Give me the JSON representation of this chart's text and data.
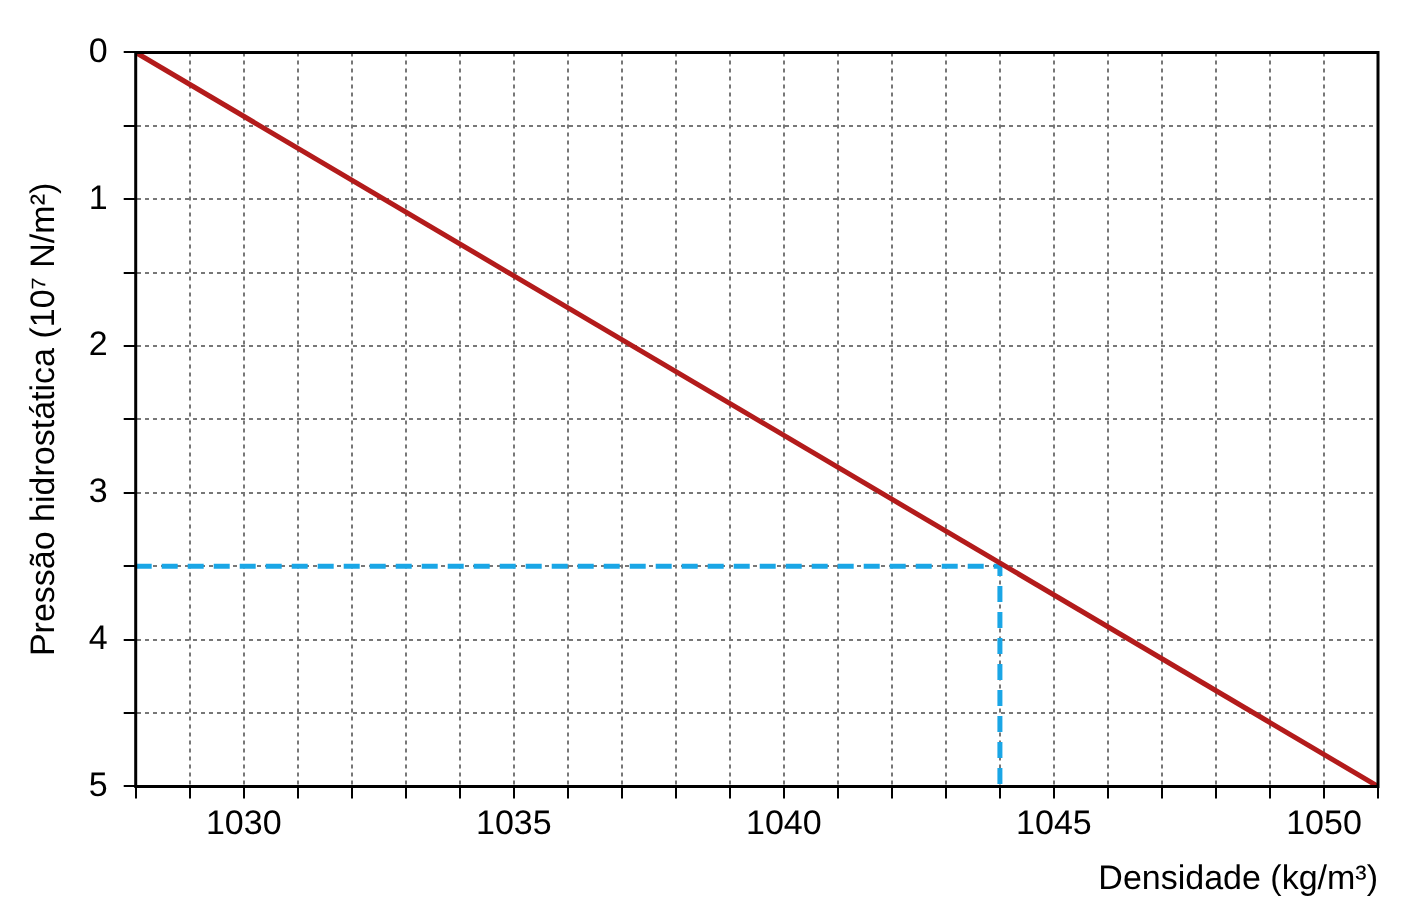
{
  "chart_data": {
    "type": "line",
    "xlabel": "Densidade (kg/m³)",
    "ylabel": "Pressão hidrostática (10⁷ N/m²)",
    "xlim": [
      1028,
      1051
    ],
    "ylim": [
      5,
      0
    ],
    "xticks": [
      {
        "value": 1028,
        "label": null
      },
      {
        "value": 1029,
        "label": null
      },
      1030,
      {
        "value": 1031,
        "label": null
      },
      {
        "value": 1032,
        "label": null
      },
      {
        "value": 1033,
        "label": null
      },
      {
        "value": 1034,
        "label": null
      },
      1035,
      {
        "value": 1036,
        "label": null
      },
      {
        "value": 1037,
        "label": null
      },
      {
        "value": 1038,
        "label": null
      },
      {
        "value": 1039,
        "label": null
      },
      1040,
      {
        "value": 1041,
        "label": null
      },
      {
        "value": 1042,
        "label": null
      },
      {
        "value": 1043,
        "label": null
      },
      {
        "value": 1044,
        "label": null
      },
      1045,
      {
        "value": 1046,
        "label": null
      },
      {
        "value": 1047,
        "label": null
      },
      {
        "value": 1048,
        "label": null
      },
      {
        "value": 1049,
        "label": null
      },
      1050,
      {
        "value": 1051,
        "label": null
      }
    ],
    "yticks": [
      0,
      {
        "value": 0.5,
        "label": null
      },
      1,
      {
        "value": 1.5,
        "label": null
      },
      2,
      {
        "value": 2.5,
        "label": null
      },
      3,
      {
        "value": 3.5,
        "label": null
      },
      4,
      {
        "value": 4.5,
        "label": null
      },
      5
    ],
    "grid": true,
    "legend": false,
    "marker": "none",
    "series": [
      {
        "color": "#b31b1b",
        "x": [
          1028,
          1051
        ],
        "values": [
          0,
          5
        ],
        "line_style": "solid"
      },
      {
        "color": "#1aa6e6",
        "x": [
          1028,
          1044,
          1044
        ],
        "values": [
          3.5,
          3.5,
          5
        ],
        "line_style": "dashed"
      }
    ]
  }
}
